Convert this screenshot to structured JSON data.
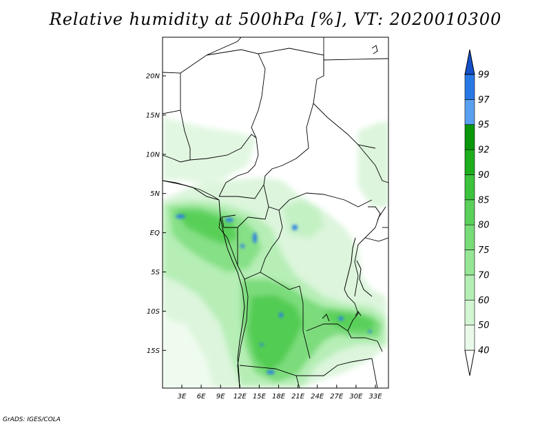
{
  "title": "Relative humidity at 500hPa [%], VT: 2020010300",
  "credit": "GrADS: IGES/COLA",
  "map": {
    "lat_labels": [
      "20N",
      "15N",
      "10N",
      "5N",
      "EQ",
      "5S",
      "10S",
      "15S"
    ],
    "lon_labels": [
      "3E",
      "6E",
      "9E",
      "12E",
      "15E",
      "18E",
      "21E",
      "24E",
      "27E",
      "30E",
      "33E"
    ]
  },
  "colorbar": {
    "levels": [
      "40",
      "50",
      "60",
      "70",
      "75",
      "80",
      "85",
      "90",
      "92",
      "95",
      "97",
      "99"
    ],
    "colors": [
      "#ffffff",
      "#eafaea",
      "#d2f5d2",
      "#b4eeb4",
      "#96e696",
      "#78dc78",
      "#5ad05a",
      "#3cc23c",
      "#1eae1e",
      "#0a960a",
      "#5aa0f0",
      "#2878e6",
      "#1450c8"
    ]
  },
  "colors": {
    "frame": "#000000",
    "land": "#ffffff"
  }
}
